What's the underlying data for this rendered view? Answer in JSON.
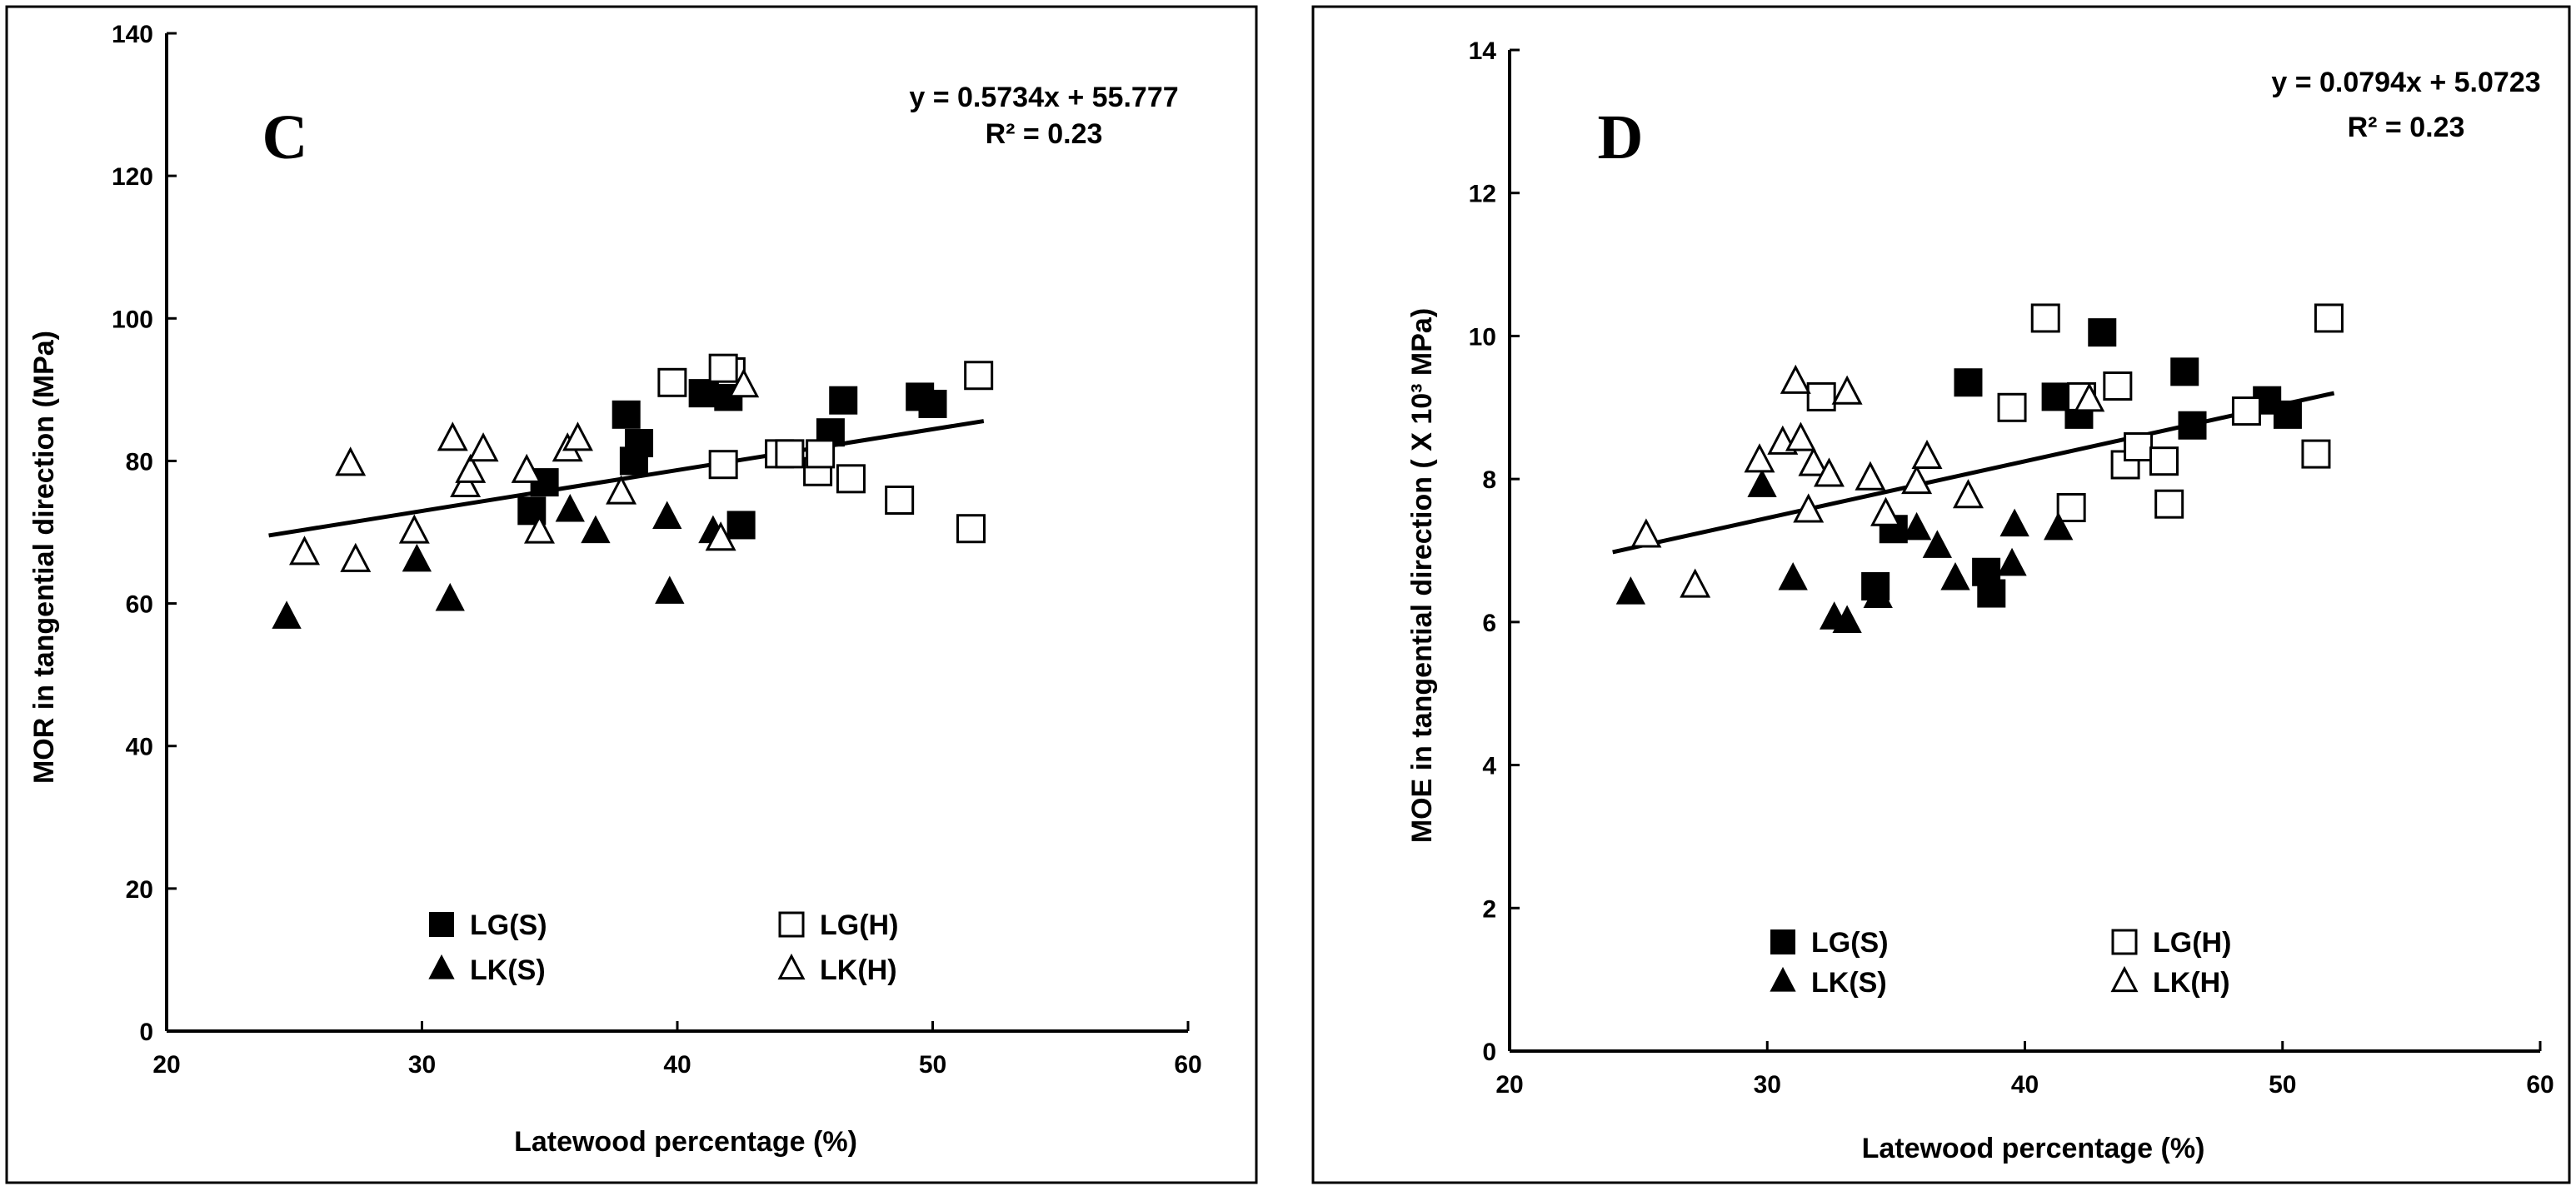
{
  "chart_data": [
    {
      "type": "scatter",
      "panel_label": "C",
      "xlabel": "Latewood percentage (%)",
      "ylabel": "MOR in tangential direction (MPa)",
      "xlim": [
        20,
        60
      ],
      "ylim": [
        0,
        140
      ],
      "xticks": [
        "20",
        "30",
        "40",
        "50",
        "60"
      ],
      "yticks": [
        "0",
        "20",
        "40",
        "60",
        "80",
        "100",
        "120",
        "140"
      ],
      "xtick_values": [
        20,
        30,
        40,
        50,
        60
      ],
      "ytick_values": [
        0,
        20,
        40,
        60,
        80,
        100,
        120,
        140
      ],
      "equation": "y = 0.5734x + 55.777",
      "r2": "R² = 0.23",
      "trendline": {
        "slope": 0.5734,
        "intercept": 55.777,
        "x_range": [
          24,
          52
        ]
      },
      "grid": false,
      "series": [
        {
          "name": "LG(S)",
          "marker": "square",
          "filled": true,
          "x": [
            34.3,
            34.8,
            38,
            38.3,
            38.5,
            41,
            42,
            42.5,
            46,
            46.5,
            49.5,
            50
          ],
          "y": [
            73,
            77,
            86.5,
            80,
            82.5,
            89.5,
            89,
            71,
            84,
            88.5,
            89,
            88
          ]
        },
        {
          "name": "LG(H)",
          "marker": "square",
          "filled": false,
          "x": [
            39.8,
            41.8,
            42.1,
            44,
            44.4,
            45.5,
            45.6,
            46.8,
            48.7,
            51.5,
            51.8
          ],
          "y": [
            91,
            79.5,
            92.5,
            81,
            81,
            78.5,
            81,
            77.5,
            74.5,
            70.5,
            92
          ],
          "extra_points": [
            [
              41.8,
              93
            ]
          ]
        },
        {
          "name": "LK(S)",
          "marker": "triangle",
          "filled": true,
          "x": [
            24.7,
            29.8,
            31.1,
            35.8,
            36.8,
            39.6,
            39.7,
            41.4
          ],
          "y": [
            58,
            66,
            60.5,
            73,
            70,
            72,
            61.5,
            70
          ]
        },
        {
          "name": "LK(H)",
          "marker": "triangle",
          "filled": false,
          "x": [
            25.4,
            27.2,
            27.4,
            29.7,
            31.2,
            31.7,
            31.9,
            32.4,
            34.1,
            34.6,
            35.7,
            36.1,
            37.8,
            41.7,
            42.6
          ],
          "y": [
            67,
            79.5,
            66,
            70,
            83,
            76.5,
            78.5,
            81.5,
            78.5,
            70,
            81.5,
            83,
            75.5,
            69,
            90.5
          ]
        }
      ]
    },
    {
      "type": "scatter",
      "panel_label": "D",
      "xlabel": "Latewood percentage (%)",
      "ylabel": "MOE in tangential direction ( X 10³ MPa)",
      "xlim": [
        20,
        60
      ],
      "ylim": [
        0,
        14
      ],
      "xticks": [
        "20",
        "30",
        "40",
        "50",
        "60"
      ],
      "yticks": [
        "0",
        "2",
        "4",
        "6",
        "8",
        "10",
        "12",
        "14"
      ],
      "xtick_values": [
        20,
        30,
        40,
        50,
        60
      ],
      "ytick_values": [
        0,
        2,
        4,
        6,
        8,
        10,
        12,
        14
      ],
      "equation": "y = 0.0794x + 5.0723",
      "r2": "R² = 0.23",
      "trendline": {
        "slope": 0.0794,
        "intercept": 5.0723,
        "x_range": [
          24,
          52
        ]
      },
      "grid": false,
      "series": [
        {
          "name": "LG(S)",
          "marker": "square",
          "filled": true,
          "x": [
            34.2,
            34.9,
            37.8,
            38.5,
            38.7,
            41.2,
            42.1,
            43,
            46.2,
            46.5,
            49.4,
            50.2
          ],
          "y": [
            6.5,
            7.3,
            9.35,
            6.7,
            6.4,
            9.15,
            8.9,
            10.05,
            9.5,
            8.75,
            9.1,
            8.9
          ]
        },
        {
          "name": "LG(H)",
          "marker": "square",
          "filled": false,
          "x": [
            32.1,
            39.5,
            40.8,
            41.8,
            42.2,
            43.6,
            43.9,
            44.4,
            45.4,
            45.6,
            48.6,
            51.3,
            51.8
          ],
          "y": [
            9.15,
            9.0,
            10.25,
            7.6,
            9.15,
            9.3,
            8.2,
            8.45,
            8.25,
            7.65,
            8.95,
            8.35,
            10.25
          ]
        },
        {
          "name": "LK(S)",
          "marker": "triangle",
          "filled": true,
          "x": [
            24.7,
            29.8,
            31.0,
            32.6,
            33.1,
            34.3,
            35.8,
            36.6,
            37.3,
            39.5,
            39.6,
            41.3
          ],
          "y": [
            6.4,
            7.9,
            6.6,
            6.05,
            6.0,
            6.35,
            7.3,
            7.05,
            6.6,
            6.8,
            7.35,
            7.3
          ]
        },
        {
          "name": "LK(H)",
          "marker": "triangle",
          "filled": false,
          "x": [
            25.3,
            27.2,
            29.7,
            30.6,
            31.1,
            31.3,
            31.6,
            31.8,
            32.4,
            33.1,
            34.0,
            34.6,
            35.8,
            36.2,
            37.8,
            42.5
          ],
          "y": [
            7.2,
            6.5,
            8.25,
            8.5,
            9.35,
            8.55,
            7.55,
            8.2,
            8.05,
            9.2,
            8.0,
            7.5,
            7.95,
            8.3,
            7.75,
            9.1
          ]
        }
      ]
    }
  ]
}
